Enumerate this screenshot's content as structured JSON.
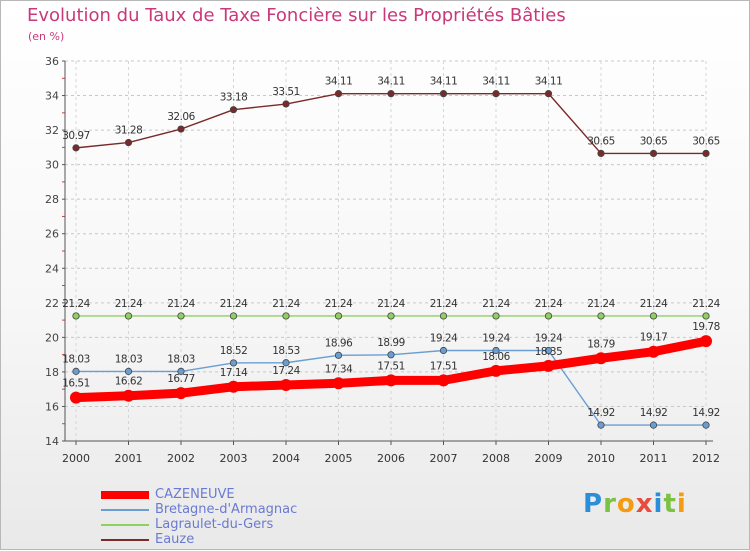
{
  "chart_data": {
    "type": "line",
    "title": "Evolution du Taux de Taxe Foncière sur les Propriétés Bâties",
    "subtitle": "(en %)",
    "xlabel": "",
    "ylabel": "",
    "ylim": [
      14,
      36
    ],
    "yticks": [
      14,
      16,
      18,
      20,
      22,
      24,
      26,
      28,
      30,
      32,
      34,
      36
    ],
    "categories": [
      "2000",
      "2001",
      "2002",
      "2003",
      "2004",
      "2005",
      "2006",
      "2007",
      "2008",
      "2009",
      "2010",
      "2011",
      "2012"
    ],
    "series": [
      {
        "name": "Eauze",
        "color": "#7a2a2a",
        "labels": [
          "30.97",
          "31.28",
          "32.06",
          "33.18",
          "33.51",
          "34.11",
          "34.11",
          "34.11",
          "34.11",
          "34.11",
          "30.65",
          "30.65",
          "30.65"
        ],
        "values": [
          30.97,
          31.28,
          32.06,
          33.18,
          33.51,
          34.11,
          34.11,
          34.11,
          34.11,
          34.11,
          30.65,
          30.65,
          30.65
        ]
      },
      {
        "name": "Lagraulet-du-Gers",
        "color": "#90d060",
        "labels": [
          "21.24",
          "21.24",
          "21.24",
          "21.24",
          "21.24",
          "21.24",
          "21.24",
          "21.24",
          "21.24",
          "21.24",
          "21.24",
          "21.24",
          "21.24"
        ],
        "values": [
          21.24,
          21.24,
          21.24,
          21.24,
          21.24,
          21.24,
          21.24,
          21.24,
          21.24,
          21.24,
          21.24,
          21.24,
          21.24
        ]
      },
      {
        "name": "Bretagne-d'Armagnac",
        "color": "#6a9ed2",
        "labels": [
          "18.03",
          "18.03",
          "18.03",
          "18.52",
          "18.53",
          "18.96",
          "18.99",
          "19.24",
          "19.24",
          "19.24",
          "14.92",
          "14.92",
          "14.92"
        ],
        "values": [
          18.03,
          18.03,
          18.03,
          18.52,
          18.53,
          18.96,
          18.99,
          19.24,
          19.24,
          19.24,
          14.92,
          14.92,
          14.92
        ]
      },
      {
        "name": "CAZENEUVE",
        "color": "#ff0000",
        "labels": [
          "16.51",
          "16.62",
          "16.77",
          "17.14",
          "17.24",
          "17.34",
          "17.51",
          "17.51",
          "18.06",
          "18.35",
          "18.79",
          "19.17",
          "19.78"
        ],
        "values": [
          16.51,
          16.62,
          16.77,
          17.14,
          17.24,
          17.34,
          17.51,
          17.51,
          18.06,
          18.35,
          18.79,
          19.17,
          19.78
        ]
      }
    ],
    "legend": [
      {
        "name": "CAZENEUVE",
        "color": "#ff0000"
      },
      {
        "name": "Bretagne-d'Armagnac",
        "color": "#6a9ed2"
      },
      {
        "name": "Lagraulet-du-Gers",
        "color": "#90d060"
      },
      {
        "name": "Eauze",
        "color": "#7a2a2a"
      }
    ],
    "legend_position": "bottom-left",
    "grid": true
  },
  "brand": {
    "text": "Proxiti",
    "letters": [
      {
        "ch": "P",
        "color": "#2a8fd8"
      },
      {
        "ch": "r",
        "color": "#7cc242"
      },
      {
        "ch": "o",
        "color": "#f39c12"
      },
      {
        "ch": "x",
        "color": "#e74c3c"
      },
      {
        "ch": "i",
        "color": "#2a8fd8"
      },
      {
        "ch": "t",
        "color": "#7cc242"
      },
      {
        "ch": "i",
        "color": "#f39c12"
      }
    ]
  }
}
